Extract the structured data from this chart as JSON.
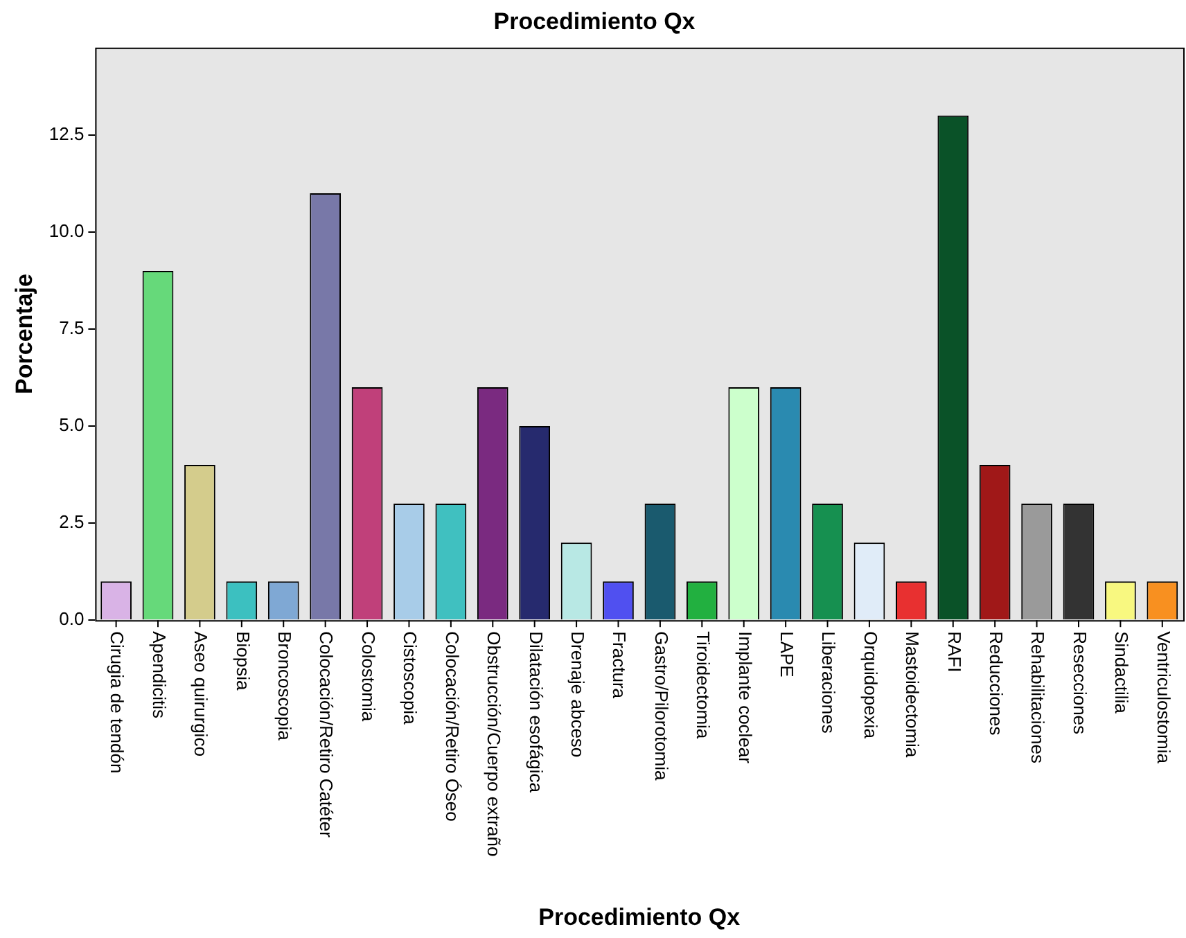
{
  "chart_data": {
    "type": "bar",
    "title": "Procedimiento Qx",
    "xlabel": "Procedimiento Qx",
    "ylabel": "Porcentaje",
    "categories": [
      "Cirugia de tendón",
      "Apendicitis",
      "Aseo quirurgico",
      "Biopsia",
      "Broncoscopia",
      "Colocación/Retiro Catéter",
      "Colostomia",
      "Cistoscopia",
      "Colocación/Retiro Óseo",
      "Obstrucción/Cuerpo extraño",
      "Dilatación esofágica",
      "Drenaje abceso",
      "Fractura",
      "Gastro/Pilorotomia",
      "Tiroidectomia",
      "Implante coclear",
      "LAPE",
      "Liberaciones",
      "Orquidopexia",
      "Mastoidectomia",
      "RAFI",
      "Reducciones",
      "Rehabilitaciones",
      "Resecciones",
      "Sindactilia",
      "Ventriculostomia"
    ],
    "values": [
      1,
      9,
      4,
      1,
      1,
      11,
      6,
      3,
      3,
      6,
      5,
      2,
      1,
      3,
      1,
      6,
      6,
      3,
      2,
      1,
      13,
      4,
      3,
      3,
      1,
      1
    ],
    "colors": [
      "#d9b3e6",
      "#66d97a",
      "#d4cc8c",
      "#3cc0c0",
      "#7fa8d4",
      "#7878a8",
      "#c0407a",
      "#a8cce8",
      "#40c0c0",
      "#7a2a80",
      "#262a6e",
      "#b8e8e4",
      "#5050f0",
      "#1a5a6e",
      "#22b040",
      "#ccffcc",
      "#2a8ab0",
      "#169050",
      "#e0ecf8",
      "#e83030",
      "#0a5228",
      "#a01818",
      "#9a9a9a",
      "#333333",
      "#f8f880",
      "#f89020"
    ],
    "ylim": [
      0,
      14.75
    ],
    "yticks": [
      {
        "value": 0,
        "label": "0.0"
      },
      {
        "value": 2.5,
        "label": "2.5"
      },
      {
        "value": 5,
        "label": "5.0"
      },
      {
        "value": 7.5,
        "label": "7.5"
      },
      {
        "value": 10,
        "label": "10.0"
      },
      {
        "value": 12.5,
        "label": "12.5"
      }
    ],
    "grid": false,
    "legend": false
  }
}
